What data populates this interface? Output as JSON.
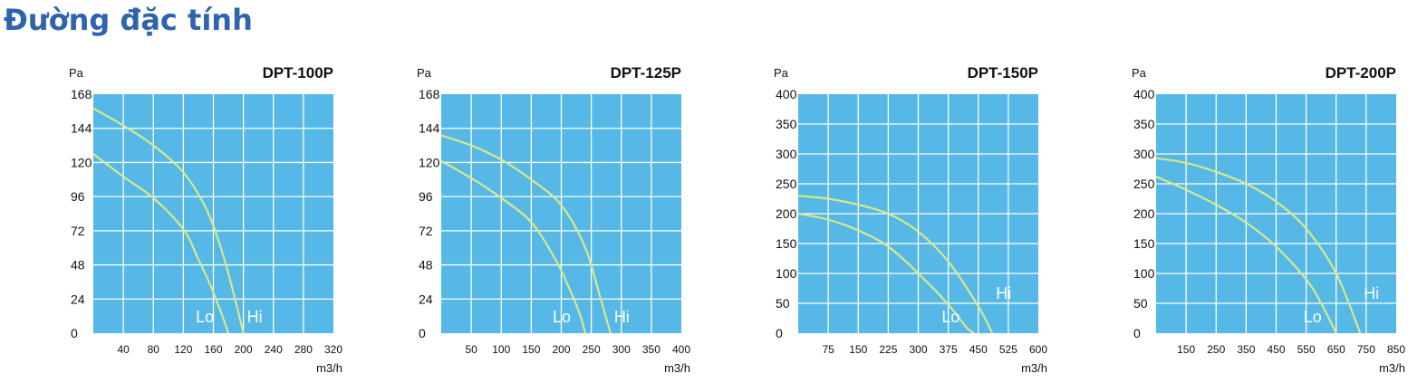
{
  "page": {
    "title": "Đường đặc tính",
    "title_color": "#2e63ad",
    "plot_bg": "#55b8e6",
    "grid_color": "#ffffff",
    "curve_color": "#d9e88c"
  },
  "chart_data": [
    {
      "type": "line",
      "title": "DPT-100P",
      "ylabel": "Pa",
      "xlabel": "m3/h",
      "xlim": [
        0,
        320
      ],
      "ylim": [
        0,
        168
      ],
      "xticks": [
        40,
        80,
        120,
        160,
        200,
        240,
        280,
        320
      ],
      "yticks": [
        0,
        24,
        48,
        72,
        96,
        120,
        144,
        168
      ],
      "grid": true,
      "series": [
        {
          "name": "Hi",
          "x": [
            0,
            40,
            80,
            120,
            150,
            170,
            185,
            200
          ],
          "y": [
            158,
            146,
            132,
            113,
            88,
            60,
            32,
            0
          ]
        },
        {
          "name": "Lo",
          "x": [
            0,
            40,
            80,
            120,
            140,
            155,
            170,
            180
          ],
          "y": [
            126,
            110,
            95,
            73,
            52,
            35,
            15,
            0
          ]
        }
      ]
    },
    {
      "type": "line",
      "title": "DPT-125P",
      "ylabel": "Pa",
      "xlabel": "m3/h",
      "xlim": [
        0,
        400
      ],
      "ylim": [
        0,
        168
      ],
      "xticks": [
        50,
        100,
        150,
        200,
        250,
        300,
        350,
        400
      ],
      "yticks": [
        0,
        24,
        48,
        72,
        96,
        120,
        144,
        168
      ],
      "grid": true,
      "series": [
        {
          "name": "Hi",
          "x": [
            0,
            50,
            100,
            150,
            200,
            240,
            265,
            282
          ],
          "y": [
            139,
            132,
            122,
            108,
            90,
            60,
            25,
            0
          ]
        },
        {
          "name": "Lo",
          "x": [
            0,
            50,
            100,
            150,
            190,
            215,
            232,
            240
          ],
          "y": [
            121,
            109,
            95,
            78,
            52,
            30,
            12,
            0
          ]
        }
      ]
    },
    {
      "type": "line",
      "title": "DPT-150P",
      "ylabel": "Pa",
      "xlabel": "m3/h",
      "xlim": [
        0,
        600
      ],
      "ylim": [
        0,
        400
      ],
      "xticks": [
        75,
        150,
        225,
        300,
        375,
        450,
        525,
        600
      ],
      "yticks": [
        0,
        50,
        100,
        150,
        200,
        250,
        300,
        350,
        400
      ],
      "grid": true,
      "series": [
        {
          "name": "Hi",
          "x": [
            0,
            75,
            150,
            225,
            300,
            375,
            450,
            485
          ],
          "y": [
            230,
            225,
            215,
            200,
            170,
            120,
            45,
            0
          ]
        },
        {
          "name": "Lo",
          "x": [
            0,
            75,
            150,
            225,
            300,
            375,
            420,
            440
          ],
          "y": [
            200,
            190,
            172,
            145,
            100,
            48,
            10,
            0
          ]
        }
      ]
    },
    {
      "type": "line",
      "title": "DPT-200P",
      "ylabel": "Pa",
      "xlabel": "m3/h",
      "xlim": [
        50,
        850
      ],
      "ylim": [
        0,
        400
      ],
      "xticks": [
        150,
        250,
        350,
        450,
        550,
        650,
        750,
        850
      ],
      "yticks": [
        0,
        50,
        100,
        150,
        200,
        250,
        300,
        350,
        400
      ],
      "grid": true,
      "series": [
        {
          "name": "Hi",
          "x": [
            50,
            150,
            250,
            350,
            450,
            550,
            650,
            730
          ],
          "y": [
            293,
            285,
            270,
            250,
            220,
            175,
            100,
            0
          ]
        },
        {
          "name": "Lo",
          "x": [
            50,
            150,
            250,
            350,
            450,
            550,
            600,
            650
          ],
          "y": [
            262,
            240,
            215,
            185,
            145,
            90,
            50,
            0
          ]
        }
      ]
    }
  ]
}
